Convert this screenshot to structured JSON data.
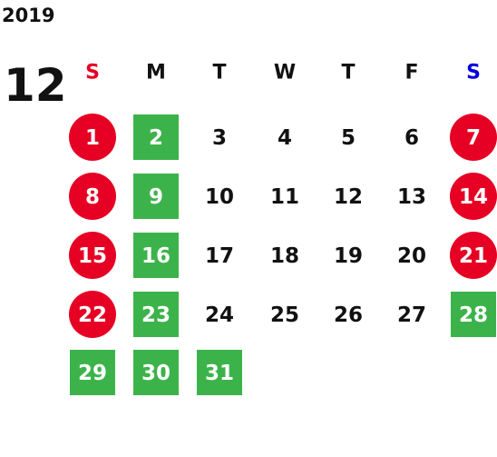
{
  "calendar": {
    "year": "2019",
    "month": "12",
    "weekdays": [
      {
        "label": "S",
        "color": "#e60023"
      },
      {
        "label": "M",
        "color": "#111111"
      },
      {
        "label": "T",
        "color": "#111111"
      },
      {
        "label": "W",
        "color": "#111111"
      },
      {
        "label": "T",
        "color": "#111111"
      },
      {
        "label": "F",
        "color": "#111111"
      },
      {
        "label": "S",
        "color": "#0000dd"
      }
    ],
    "weeks": [
      [
        {
          "day": 1,
          "shape": "circle",
          "fill": "#e60023"
        },
        {
          "day": 2,
          "shape": "square",
          "fill": "#3cb34a"
        },
        {
          "day": 3
        },
        {
          "day": 4
        },
        {
          "day": 5
        },
        {
          "day": 6
        },
        {
          "day": 7,
          "shape": "circle",
          "fill": "#e60023"
        }
      ],
      [
        {
          "day": 8,
          "shape": "circle",
          "fill": "#e60023"
        },
        {
          "day": 9,
          "shape": "square",
          "fill": "#3cb34a"
        },
        {
          "day": 10
        },
        {
          "day": 11
        },
        {
          "day": 12
        },
        {
          "day": 13
        },
        {
          "day": 14,
          "shape": "circle",
          "fill": "#e60023"
        }
      ],
      [
        {
          "day": 15,
          "shape": "circle",
          "fill": "#e60023"
        },
        {
          "day": 16,
          "shape": "square",
          "fill": "#3cb34a"
        },
        {
          "day": 17
        },
        {
          "day": 18
        },
        {
          "day": 19
        },
        {
          "day": 20
        },
        {
          "day": 21,
          "shape": "circle",
          "fill": "#e60023"
        }
      ],
      [
        {
          "day": 22,
          "shape": "circle",
          "fill": "#e60023"
        },
        {
          "day": 23,
          "shape": "square",
          "fill": "#3cb34a"
        },
        {
          "day": 24
        },
        {
          "day": 25
        },
        {
          "day": 26
        },
        {
          "day": 27
        },
        {
          "day": 28,
          "shape": "square",
          "fill": "#3cb34a"
        }
      ],
      [
        {
          "day": 29,
          "shape": "square",
          "fill": "#3cb34a"
        },
        {
          "day": 30,
          "shape": "square",
          "fill": "#3cb34a"
        },
        {
          "day": 31,
          "shape": "square",
          "fill": "#3cb34a"
        }
      ]
    ]
  }
}
